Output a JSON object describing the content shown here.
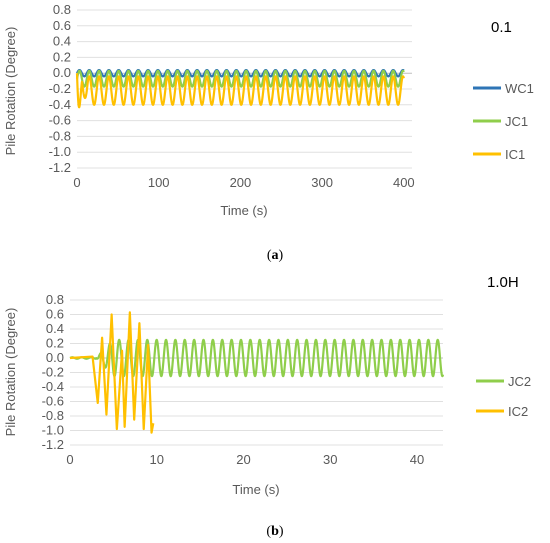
{
  "chart_data": [
    {
      "id": "a",
      "type": "line",
      "corner_label": "0.1",
      "caption_letter": "a",
      "caption_open": "(",
      "caption_close": ")",
      "xlabel": "Time (s)",
      "ylabel": "Pile Rotation (Degree)",
      "xlim": [
        0,
        410
      ],
      "ylim": [
        -1.2,
        0.8
      ],
      "xticks": [
        0,
        100,
        200,
        300,
        400
      ],
      "yticks": [
        0.8,
        0.6,
        0.4,
        0.2,
        0.0,
        -0.2,
        -0.4,
        -0.6,
        -0.8,
        -1.0,
        -1.2
      ],
      "ytick_labels": [
        "0.8",
        "0.6",
        "0.4",
        "0.2",
        "0.0",
        "-0.2",
        "-0.4",
        "-0.6",
        "-0.8",
        "-1.0",
        "-1.2"
      ],
      "grid": "horizontal",
      "legend_position": "right",
      "series": [
        {
          "name": "WC1",
          "color": "#2e75b6",
          "description_of_shape": "steady oscillation",
          "x": [
            0,
            5,
            10,
            400
          ],
          "mean": 0.0,
          "amplitude": 0.04,
          "period_s": 12,
          "t_start": 0,
          "t_end": 400
        },
        {
          "name": "JC1",
          "color": "#8fce4b",
          "x": [
            0,
            400
          ],
          "mean": -0.07,
          "amplitude": 0.1,
          "period_s": 12,
          "t_start": 0,
          "t_end": 400
        },
        {
          "name": "IC1",
          "color": "#ffc000",
          "x": [
            0,
            400
          ],
          "mean": -0.22,
          "amplitude": 0.18,
          "period_s": 12,
          "t_start": 0,
          "t_end": 400,
          "initial_min": -0.55
        }
      ]
    },
    {
      "id": "b",
      "type": "line",
      "corner_label": "1.0H",
      "caption_letter": "b",
      "caption_open": "(",
      "caption_close": ")",
      "xlabel": "Time (s)",
      "ylabel": "Pile Rotation (Degree)",
      "xlim": [
        0,
        43
      ],
      "ylim": [
        -1.2,
        0.8
      ],
      "xticks": [
        0,
        10,
        20,
        30,
        40
      ],
      "yticks": [
        0.8,
        0.6,
        0.4,
        0.2,
        0.0,
        -0.2,
        -0.4,
        -0.6,
        -0.8,
        -1.0,
        -1.2
      ],
      "ytick_labels": [
        "0.8",
        "0.6",
        "0.4",
        "0.2",
        "0.0",
        "-0.2",
        "-0.4",
        "-0.6",
        "-0.8",
        "-1.0",
        "-1.2"
      ],
      "grid": "horizontal",
      "legend_position": "right",
      "series": [
        {
          "name": "JC2",
          "color": "#8fce4b",
          "t_start": 0,
          "t_end": 43,
          "quiet_until": 3,
          "mean": 0.0,
          "amplitude": 0.25,
          "period_s": 1.08
        },
        {
          "name": "IC2",
          "color": "#ffc000",
          "t_start": 0,
          "t_end": 9.6,
          "peaks": [
            {
              "t": 0,
              "v": 0.0
            },
            {
              "t": 2.6,
              "v": 0.02
            },
            {
              "t": 3.2,
              "v": -0.62
            },
            {
              "t": 3.7,
              "v": 0.28
            },
            {
              "t": 4.2,
              "v": -0.78
            },
            {
              "t": 4.8,
              "v": 0.6
            },
            {
              "t": 5.4,
              "v": -0.98
            },
            {
              "t": 6.0,
              "v": 0.1
            },
            {
              "t": 6.3,
              "v": -0.95
            },
            {
              "t": 6.9,
              "v": 0.63
            },
            {
              "t": 7.4,
              "v": -0.85
            },
            {
              "t": 8.0,
              "v": 0.48
            },
            {
              "t": 8.5,
              "v": -0.98
            },
            {
              "t": 9.0,
              "v": 0.18
            },
            {
              "t": 9.4,
              "v": -1.03
            },
            {
              "t": 9.6,
              "v": -0.9
            }
          ]
        }
      ]
    }
  ]
}
